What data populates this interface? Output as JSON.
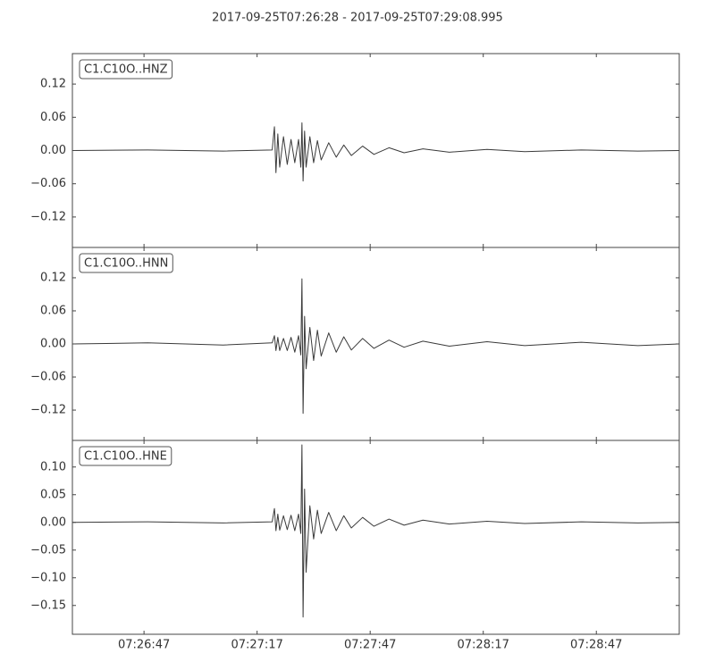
{
  "chart_data": [
    {
      "type": "line",
      "title": "2017-09-25T07:26:28  -  2017-09-25T07:29:08.995",
      "label": "C1.C10O..HNZ",
      "xlim": [
        0,
        160.995
      ],
      "x": [
        0,
        20,
        40,
        53,
        53.6,
        54,
        54.5,
        55,
        56,
        57,
        58,
        59,
        60,
        60.6,
        60.9,
        61.2,
        61.6,
        62,
        63,
        64,
        65,
        66,
        68,
        70,
        72,
        74,
        77,
        80,
        84,
        88,
        93,
        100,
        110,
        120,
        135,
        150,
        160.995
      ],
      "series": [
        {
          "color": "#3a3a3a",
          "values": [
            0,
            0.001,
            -0.001,
            0.001,
            0.043,
            -0.04,
            0.03,
            -0.03,
            0.025,
            -0.025,
            0.02,
            -0.022,
            0.02,
            -0.03,
            0.05,
            -0.055,
            0.035,
            -0.03,
            0.025,
            -0.022,
            0.018,
            -0.017,
            0.014,
            -0.012,
            0.01,
            -0.009,
            0.008,
            -0.007,
            0.005,
            -0.004,
            0.003,
            -0.003,
            0.002,
            -0.002,
            0.001,
            -0.001,
            0
          ]
        }
      ],
      "ylim": [
        -0.175,
        0.175
      ],
      "yticks": [
        0.12,
        0.06,
        {
          "value": 0,
          "label": "0.00"
        },
        {
          "value": -0.06,
          "label": "−0.06"
        },
        {
          "value": -0.12,
          "label": "−0.12"
        }
      ]
    },
    {
      "type": "line",
      "label": "C1.C10O..HNN",
      "xlim": [
        0,
        160.995
      ],
      "x": [
        0,
        20,
        40,
        53,
        53.6,
        54,
        54.5,
        55,
        56,
        57,
        58,
        59,
        60,
        60.6,
        60.9,
        61.2,
        61.6,
        62,
        63,
        64,
        65,
        66,
        68,
        70,
        72,
        74,
        77,
        80,
        84,
        88,
        93,
        100,
        110,
        120,
        135,
        150,
        160.995
      ],
      "series": [
        {
          "color": "#3a3a3a",
          "values": [
            0,
            0.002,
            -0.002,
            0.002,
            0.015,
            -0.012,
            0.012,
            -0.012,
            0.01,
            -0.012,
            0.012,
            -0.015,
            0.015,
            -0.02,
            0.118,
            -0.126,
            0.05,
            -0.045,
            0.03,
            -0.03,
            0.025,
            -0.022,
            0.02,
            -0.015,
            0.013,
            -0.011,
            0.01,
            -0.008,
            0.007,
            -0.006,
            0.005,
            -0.004,
            0.004,
            -0.003,
            0.003,
            -0.003,
            0
          ]
        }
      ],
      "ylim": [
        -0.175,
        0.175
      ],
      "yticks": [
        0.12,
        0.06,
        {
          "value": 0,
          "label": "0.00"
        },
        {
          "value": -0.06,
          "label": "−0.06"
        },
        {
          "value": -0.12,
          "label": "−0.12"
        }
      ]
    },
    {
      "type": "line",
      "label": "C1.C10O..HNE",
      "xlim": [
        0,
        160.995
      ],
      "xticks": [
        {
          "value": 19,
          "label": "07:26:47"
        },
        {
          "value": 49,
          "label": "07:27:17"
        },
        {
          "value": 79,
          "label": "07:27:47"
        },
        {
          "value": 109,
          "label": "07:28:17"
        },
        {
          "value": 139,
          "label": "07:28:47"
        }
      ],
      "x": [
        0,
        20,
        40,
        53,
        53.6,
        54,
        54.5,
        55,
        56,
        57,
        58,
        59,
        60,
        60.6,
        60.9,
        61.2,
        61.6,
        62,
        63,
        64,
        65,
        66,
        68,
        70,
        72,
        74,
        77,
        80,
        84,
        88,
        93,
        100,
        110,
        120,
        135,
        150,
        160.995
      ],
      "series": [
        {
          "color": "#3a3a3a",
          "values": [
            0,
            0.001,
            -0.001,
            0.001,
            0.025,
            -0.015,
            0.015,
            -0.014,
            0.012,
            -0.013,
            0.013,
            -0.015,
            0.015,
            -0.02,
            0.14,
            -0.171,
            0.06,
            -0.09,
            0.03,
            -0.03,
            0.022,
            -0.02,
            0.018,
            -0.015,
            0.012,
            -0.01,
            0.009,
            -0.007,
            0.006,
            -0.005,
            0.004,
            -0.003,
            0.002,
            -0.002,
            0.001,
            -0.001,
            0
          ]
        }
      ],
      "ylim": [
        -0.202,
        0.148
      ],
      "yticks": [
        {
          "value": 0.1,
          "label": "0.10"
        },
        0.05,
        {
          "value": 0,
          "label": "0.00"
        },
        {
          "value": -0.05,
          "label": "−0.05"
        },
        {
          "value": -0.1,
          "label": "−0.10"
        },
        {
          "value": -0.15,
          "label": "−0.15"
        }
      ]
    }
  ]
}
